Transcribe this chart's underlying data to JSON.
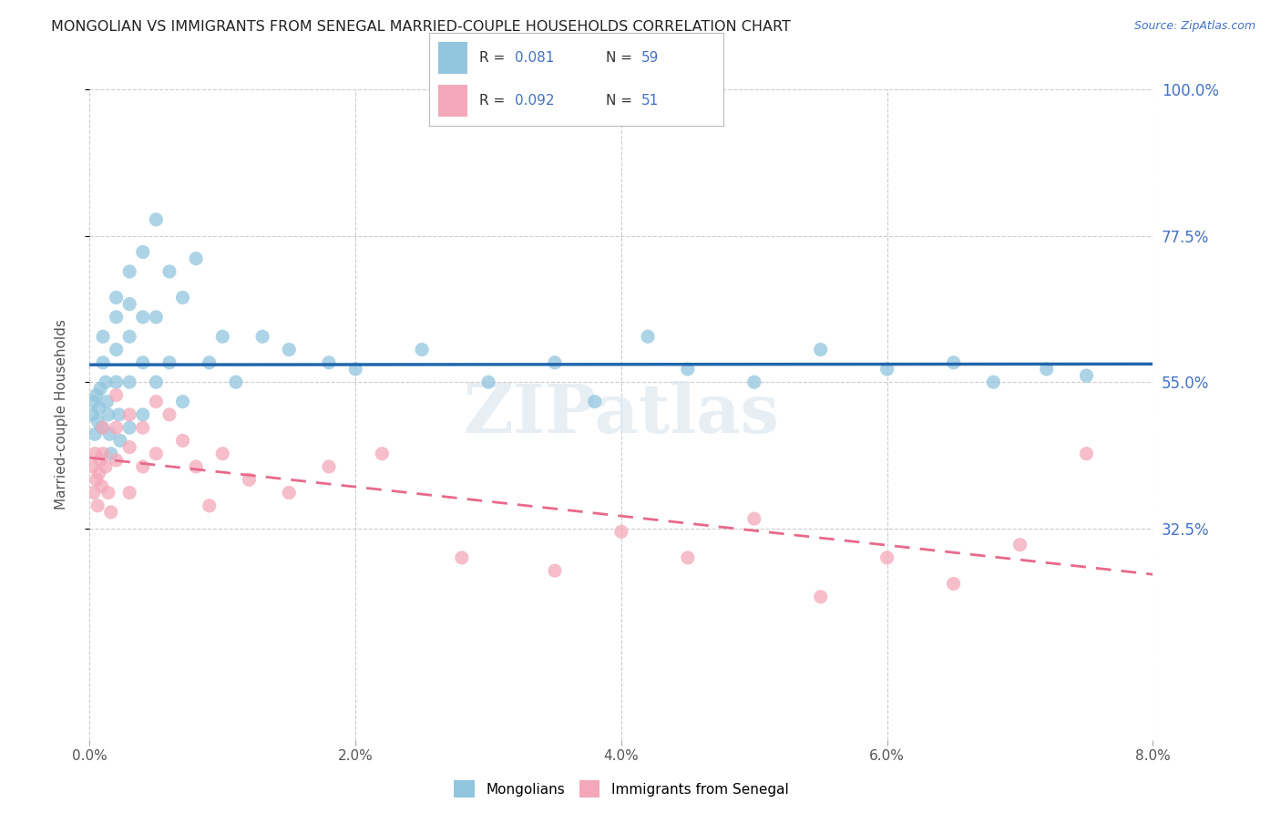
{
  "title": "MONGOLIAN VS IMMIGRANTS FROM SENEGAL MARRIED-COUPLE HOUSEHOLDS CORRELATION CHART",
  "source": "Source: ZipAtlas.com",
  "ylabel": "Married-couple Households",
  "xlim": [
    0.0,
    0.08
  ],
  "ylim": [
    0.0,
    1.0
  ],
  "right_ytick_vals": [
    0.325,
    0.55,
    0.775,
    1.0
  ],
  "right_ytick_labels": [
    "32.5%",
    "55.0%",
    "77.5%",
    "100.0%"
  ],
  "xtick_vals": [
    0.0,
    0.02,
    0.04,
    0.06,
    0.08
  ],
  "xtick_labels": [
    "0.0%",
    "2.0%",
    "4.0%",
    "6.0%",
    "8.0%"
  ],
  "mongolian_color": "#92c5de",
  "senegal_color": "#f4a7b9",
  "mongolian_line_color": "#2166ac",
  "senegal_line_color": "#e8698a",
  "watermark": "ZIPatlas",
  "mongolian_x": [
    0.0002,
    0.0003,
    0.0004,
    0.0005,
    0.0006,
    0.0007,
    0.0008,
    0.0009,
    0.001,
    0.001,
    0.0012,
    0.0013,
    0.0014,
    0.0015,
    0.0016,
    0.002,
    0.002,
    0.002,
    0.002,
    0.0022,
    0.0023,
    0.003,
    0.003,
    0.003,
    0.003,
    0.003,
    0.004,
    0.004,
    0.004,
    0.004,
    0.005,
    0.005,
    0.005,
    0.006,
    0.006,
    0.007,
    0.007,
    0.008,
    0.009,
    0.01,
    0.011,
    0.013,
    0.015,
    0.018,
    0.02,
    0.025,
    0.03,
    0.035,
    0.038,
    0.042,
    0.045,
    0.05,
    0.055,
    0.06,
    0.065,
    0.068,
    0.072,
    0.075
  ],
  "mongolian_y": [
    0.5,
    0.52,
    0.47,
    0.53,
    0.49,
    0.51,
    0.54,
    0.48,
    0.62,
    0.58,
    0.55,
    0.52,
    0.5,
    0.47,
    0.44,
    0.68,
    0.65,
    0.6,
    0.55,
    0.5,
    0.46,
    0.72,
    0.67,
    0.62,
    0.55,
    0.48,
    0.75,
    0.65,
    0.58,
    0.5,
    0.8,
    0.65,
    0.55,
    0.72,
    0.58,
    0.68,
    0.52,
    0.74,
    0.58,
    0.62,
    0.55,
    0.62,
    0.6,
    0.58,
    0.57,
    0.6,
    0.55,
    0.58,
    0.52,
    0.62,
    0.57,
    0.55,
    0.6,
    0.57,
    0.58,
    0.55,
    0.57,
    0.56
  ],
  "senegal_x": [
    0.0002,
    0.0003,
    0.0004,
    0.0005,
    0.0006,
    0.0007,
    0.0008,
    0.0009,
    0.001,
    0.001,
    0.0012,
    0.0014,
    0.0016,
    0.002,
    0.002,
    0.002,
    0.003,
    0.003,
    0.003,
    0.004,
    0.004,
    0.005,
    0.005,
    0.006,
    0.007,
    0.008,
    0.009,
    0.01,
    0.012,
    0.015,
    0.018,
    0.022,
    0.028,
    0.035,
    0.04,
    0.045,
    0.05,
    0.055,
    0.06,
    0.065,
    0.07,
    0.075
  ],
  "senegal_y": [
    0.42,
    0.38,
    0.44,
    0.4,
    0.36,
    0.41,
    0.43,
    0.39,
    0.48,
    0.44,
    0.42,
    0.38,
    0.35,
    0.53,
    0.48,
    0.43,
    0.5,
    0.45,
    0.38,
    0.48,
    0.42,
    0.52,
    0.44,
    0.5,
    0.46,
    0.42,
    0.36,
    0.44,
    0.4,
    0.38,
    0.42,
    0.44,
    0.28,
    0.26,
    0.32,
    0.28,
    0.34,
    0.22,
    0.28,
    0.24,
    0.3,
    0.44
  ],
  "background_color": "#ffffff",
  "grid_color": "#cccccc"
}
